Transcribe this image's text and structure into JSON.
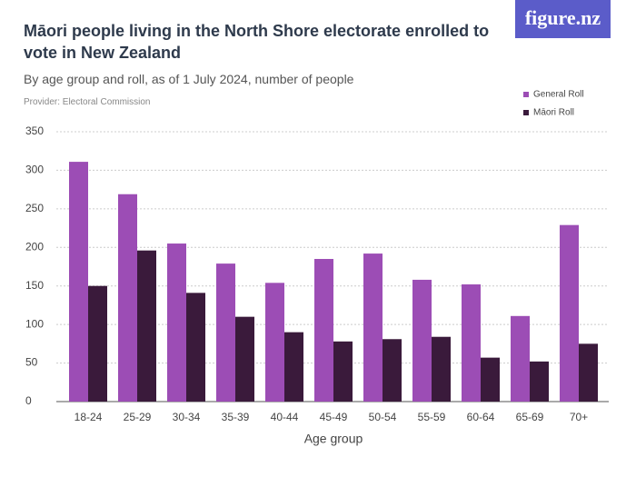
{
  "logo": "figure.nz",
  "chart_data": {
    "type": "bar",
    "title": "Māori people living in the North Shore electorate enrolled to vote in New Zealand",
    "subtitle": "By age group and roll, as of 1 July 2024, number of people",
    "provider": "Provider: Electoral Commission",
    "x_label": "Age group",
    "categories": [
      "18-24",
      "25-29",
      "30-34",
      "35-39",
      "40-44",
      "45-49",
      "50-54",
      "55-59",
      "60-64",
      "65-69",
      "70+"
    ],
    "series": [
      {
        "name": "General Roll",
        "color": "#9c4db5",
        "values": [
          311,
          269,
          205,
          179,
          154,
          185,
          192,
          158,
          152,
          111,
          229
        ]
      },
      {
        "name": "Māori Roll",
        "color": "#3a1a3b",
        "values": [
          150,
          196,
          141,
          110,
          90,
          78,
          81,
          84,
          57,
          52,
          75
        ]
      }
    ],
    "ylim": [
      0,
      350
    ],
    "yticks": [
      0,
      50,
      100,
      150,
      200,
      250,
      300,
      350
    ],
    "grid": true,
    "legend": "top-right"
  }
}
